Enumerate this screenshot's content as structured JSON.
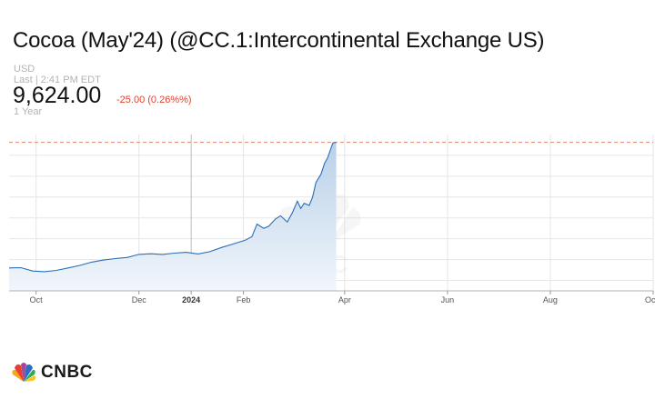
{
  "header": {
    "title": "Cocoa (May'24) (@CC.1:Intercontinental Exchange US)",
    "currency": "USD",
    "last_time": "Last | 2:41 PM EDT",
    "price": "9,624.00",
    "change": "-25.00 (0.26%%)",
    "range": "1 Year"
  },
  "colors": {
    "line": "#2a6fb8",
    "fill_top": "#b9d0e8",
    "fill_bottom": "#f1f6fb",
    "reference": "#e0876a",
    "grid": "#e6e6e6",
    "change": "#e2402c"
  },
  "chart_data": {
    "type": "area",
    "title": "",
    "xlabel": "",
    "ylabel": "",
    "x_range": [
      "2023-09-15",
      "2024-10-01"
    ],
    "ylim": [
      2500,
      10000
    ],
    "grid": true,
    "reference_line": 9624,
    "tick_labels": [
      "Oct",
      "Dec",
      "2024",
      "Feb",
      "Apr",
      "Jun",
      "Aug",
      "Oct"
    ],
    "tick_dates": [
      "2023-10-01",
      "2023-12-01",
      "2024-01-01",
      "2024-02-01",
      "2024-04-01",
      "2024-06-01",
      "2024-08-01",
      "2024-10-01"
    ],
    "bold_ticks": [
      "2024"
    ],
    "series": [
      {
        "x": [
          "2023-09-15",
          "2023-09-22",
          "2023-09-29",
          "2023-10-06",
          "2023-10-13",
          "2023-10-20",
          "2023-10-27",
          "2023-11-03",
          "2023-11-10",
          "2023-11-17",
          "2023-11-24",
          "2023-12-01",
          "2023-12-08",
          "2023-12-15",
          "2023-12-22",
          "2023-12-29",
          "2024-01-05",
          "2024-01-12",
          "2024-01-19",
          "2024-01-26",
          "2024-02-02",
          "2024-02-06",
          "2024-02-09",
          "2024-02-13",
          "2024-02-16",
          "2024-02-20",
          "2024-02-23",
          "2024-02-27",
          "2024-03-01",
          "2024-03-04",
          "2024-03-06",
          "2024-03-08",
          "2024-03-11",
          "2024-03-13",
          "2024-03-15",
          "2024-03-18",
          "2024-03-20",
          "2024-03-22",
          "2024-03-25",
          "2024-03-27"
        ],
        "values": [
          3600,
          3610,
          3450,
          3420,
          3480,
          3600,
          3720,
          3880,
          3980,
          4050,
          4100,
          4250,
          4280,
          4250,
          4310,
          4350,
          4270,
          4380,
          4580,
          4750,
          4930,
          5100,
          5700,
          5500,
          5600,
          5950,
          6100,
          5800,
          6250,
          6800,
          6450,
          6700,
          6600,
          7000,
          7700,
          8100,
          8600,
          8900,
          9600,
          9624
        ]
      }
    ]
  }
}
